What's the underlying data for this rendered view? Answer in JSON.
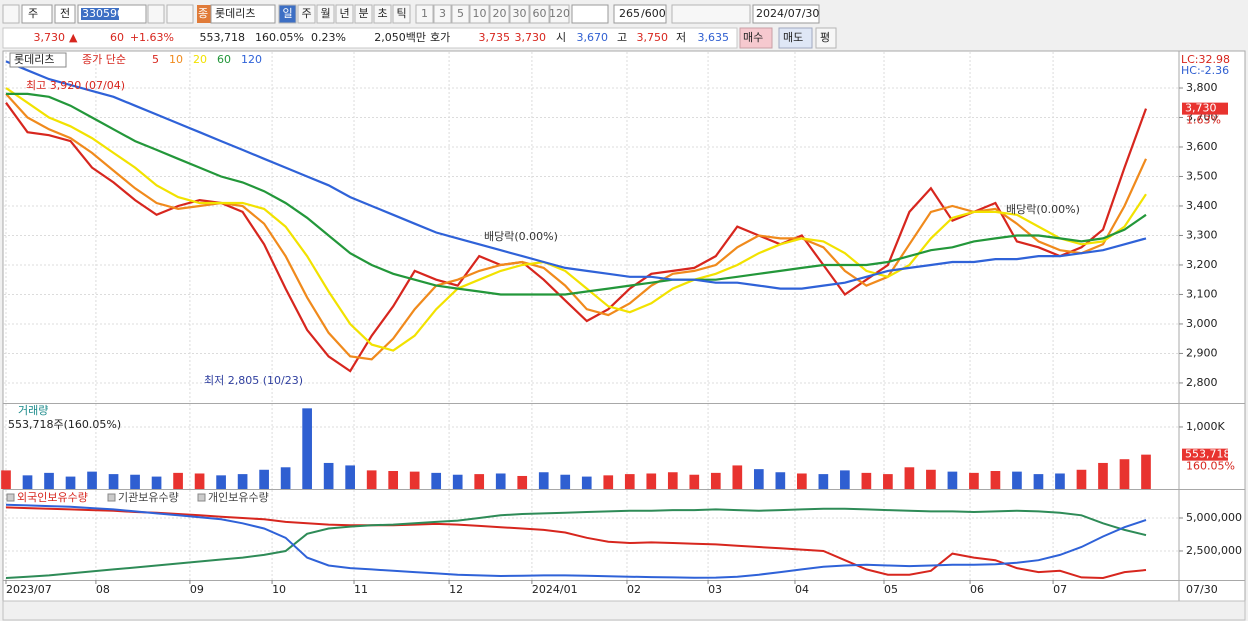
{
  "toolbar": {
    "market": "주",
    "scope": "전",
    "code": "330590",
    "badge": "종",
    "name": "롯데리츠",
    "periods": [
      "일",
      "주",
      "월",
      "년",
      "분",
      "초",
      "틱"
    ],
    "intervals": [
      "1",
      "3",
      "5",
      "10",
      "20",
      "30",
      "60",
      "120"
    ],
    "count": "265",
    "max_count": "/600",
    "date": "2024/07/30"
  },
  "info": {
    "price": "3,730",
    "direction": "▲",
    "change": "60",
    "change_rate": "+1.63%",
    "volume": "553,718",
    "volume_rate": "160.05%",
    "turnover": "0.23%",
    "amount": "2,050백만",
    "quote_label": "호가",
    "ask": "3,735",
    "bid": "3,730",
    "open_label": "시",
    "open": "3,670",
    "high_label": "고",
    "high": "3,750",
    "low_label": "저",
    "low": "3,635",
    "buy": "매수",
    "sell": "매도",
    "avg": "평"
  },
  "chart_data": [
    {
      "type": "line",
      "title": "롯데리츠",
      "subtitle": "종가 단순",
      "xlim": [
        0,
        53
      ],
      "ylim": [
        2732,
        3922
      ],
      "yticks": [
        {
          "value": 2800,
          "label": "2,800"
        },
        {
          "value": 2900,
          "label": "2,900"
        },
        {
          "value": 3000,
          "label": "3,000"
        },
        {
          "value": 3100,
          "label": "3,100"
        },
        {
          "value": 3200,
          "label": "3,200"
        },
        {
          "value": 3300,
          "label": "3,300"
        },
        {
          "value": 3400,
          "label": "3,400"
        },
        {
          "value": 3500,
          "label": "3,500"
        },
        {
          "value": 3600,
          "label": "3,600"
        },
        {
          "value": 3700,
          "label": "3,700"
        },
        {
          "value": 3800,
          "label": "3,800"
        }
      ],
      "grid": true,
      "series": [
        {
          "name": "5",
          "color": "#d7261e",
          "values": [
            3750,
            3650,
            3640,
            3620,
            3530,
            3480,
            3420,
            3370,
            3400,
            3420,
            3410,
            3380,
            3270,
            3120,
            2980,
            2890,
            2840,
            2960,
            3060,
            3180,
            3150,
            3130,
            3230,
            3200,
            3210,
            3150,
            3080,
            3010,
            3050,
            3120,
            3170,
            3180,
            3190,
            3230,
            3330,
            3300,
            3270,
            3300,
            3200,
            3100,
            3150,
            3200,
            3380,
            3460,
            3350,
            3380,
            3410,
            3280,
            3260,
            3230,
            3260,
            3320,
            3530,
            3730
          ]
        },
        {
          "name": "10",
          "color": "#f08a1c",
          "values": [
            3780,
            3700,
            3660,
            3630,
            3580,
            3520,
            3460,
            3410,
            3390,
            3400,
            3410,
            3400,
            3340,
            3230,
            3090,
            2970,
            2890,
            2880,
            2950,
            3050,
            3130,
            3150,
            3180,
            3200,
            3210,
            3190,
            3130,
            3050,
            3030,
            3070,
            3130,
            3170,
            3180,
            3200,
            3260,
            3300,
            3290,
            3290,
            3260,
            3180,
            3130,
            3160,
            3270,
            3380,
            3400,
            3380,
            3390,
            3340,
            3280,
            3250,
            3240,
            3270,
            3400,
            3560
          ]
        },
        {
          "name": "20",
          "color": "#f2e200",
          "values": [
            3800,
            3750,
            3700,
            3670,
            3630,
            3580,
            3530,
            3470,
            3430,
            3410,
            3410,
            3410,
            3390,
            3330,
            3230,
            3110,
            3000,
            2930,
            2910,
            2960,
            3050,
            3120,
            3150,
            3180,
            3200,
            3210,
            3180,
            3120,
            3060,
            3040,
            3070,
            3120,
            3150,
            3170,
            3200,
            3240,
            3270,
            3290,
            3280,
            3240,
            3180,
            3160,
            3200,
            3290,
            3360,
            3380,
            3380,
            3370,
            3330,
            3290,
            3270,
            3280,
            3330,
            3440
          ]
        },
        {
          "name": "60",
          "color": "#23973a",
          "values": [
            3780,
            3780,
            3770,
            3740,
            3700,
            3660,
            3620,
            3590,
            3560,
            3530,
            3500,
            3480,
            3450,
            3410,
            3360,
            3300,
            3240,
            3200,
            3170,
            3150,
            3130,
            3120,
            3110,
            3100,
            3100,
            3100,
            3100,
            3110,
            3120,
            3130,
            3140,
            3150,
            3150,
            3150,
            3160,
            3170,
            3180,
            3190,
            3200,
            3200,
            3200,
            3210,
            3230,
            3250,
            3260,
            3280,
            3290,
            3300,
            3300,
            3290,
            3280,
            3290,
            3320,
            3370
          ]
        },
        {
          "name": "120",
          "color": "#2f62d8",
          "values": [
            3890,
            3860,
            3830,
            3810,
            3790,
            3770,
            3740,
            3710,
            3680,
            3650,
            3620,
            3590,
            3560,
            3530,
            3500,
            3470,
            3430,
            3400,
            3370,
            3340,
            3310,
            3290,
            3270,
            3250,
            3230,
            3210,
            3190,
            3180,
            3170,
            3160,
            3160,
            3150,
            3150,
            3140,
            3140,
            3130,
            3120,
            3120,
            3130,
            3140,
            3160,
            3180,
            3190,
            3200,
            3210,
            3210,
            3220,
            3220,
            3230,
            3230,
            3240,
            3250,
            3270,
            3290
          ]
        }
      ],
      "last_label": {
        "value": 3730,
        "label": "3,730",
        "change": "1.63%"
      },
      "high_note": "최고 3,920 (07/04)",
      "low_note": "최저 2,805 (10/23)",
      "ex_dividend_notes": [
        "배당락(0.00%)",
        "배당락(0.00%)"
      ],
      "lc": "LC:32.98",
      "hc": "HC:-2.36"
    },
    {
      "type": "bar",
      "title": "거래량",
      "subtitle": "553,718주(160.05%)",
      "xlim": [
        0,
        53
      ],
      "ylim": [
        0,
        1370000
      ],
      "yticks": [
        {
          "value": 1000000,
          "label": "1,000K"
        }
      ],
      "values": [
        300000,
        220000,
        260000,
        200000,
        280000,
        240000,
        230000,
        200000,
        260000,
        250000,
        220000,
        240000,
        310000,
        350000,
        1300000,
        420000,
        380000,
        300000,
        290000,
        280000,
        260000,
        230000,
        240000,
        250000,
        210000,
        270000,
        230000,
        200000,
        220000,
        240000,
        250000,
        270000,
        230000,
        260000,
        380000,
        320000,
        270000,
        250000,
        240000,
        300000,
        260000,
        240000,
        350000,
        310000,
        280000,
        260000,
        290000,
        280000,
        240000,
        250000,
        310000,
        420000,
        480000,
        553718
      ],
      "up_color": "#e8332f",
      "down_color": "#2f5fd1",
      "last_label": {
        "value": 553718,
        "label": "553,718",
        "change": "160.05%"
      }
    },
    {
      "type": "line",
      "xlim": [
        0,
        53
      ],
      "ylim": [
        300000,
        7120000
      ],
      "yticks": [
        {
          "value": 2500000,
          "label": "2,500,000"
        },
        {
          "value": 5000000,
          "label": "5,000,000"
        }
      ],
      "xticks": [
        {
          "value": 0,
          "label": "2023/07"
        },
        {
          "value": 4.18,
          "label": "08"
        },
        {
          "value": 8.55,
          "label": "09"
        },
        {
          "value": 12.37,
          "label": "10"
        },
        {
          "value": 16.18,
          "label": "11"
        },
        {
          "value": 20.6,
          "label": "12"
        },
        {
          "value": 24.45,
          "label": "2024/01"
        },
        {
          "value": 28.87,
          "label": "02"
        },
        {
          "value": 32.64,
          "label": "03"
        },
        {
          "value": 36.68,
          "label": "04"
        },
        {
          "value": 40.82,
          "label": "05"
        },
        {
          "value": 44.82,
          "label": "06"
        },
        {
          "value": 48.68,
          "label": "07"
        }
      ],
      "x_end_label": "07/30",
      "series": [
        {
          "name": "외국인보유수량",
          "color": "#d7261e",
          "values": [
            5800000,
            5750000,
            5700000,
            5650000,
            5600000,
            5550000,
            5450000,
            5400000,
            5300000,
            5200000,
            5100000,
            5000000,
            4900000,
            4700000,
            4600000,
            4500000,
            4450000,
            4450000,
            4450000,
            4500000,
            4550000,
            4500000,
            4400000,
            4300000,
            4200000,
            4100000,
            3900000,
            3500000,
            3200000,
            3100000,
            3150000,
            3100000,
            3050000,
            3000000,
            2900000,
            2800000,
            2700000,
            2600000,
            2500000,
            1800000,
            1100000,
            700000,
            700000,
            1000000,
            2300000,
            2000000,
            1800000,
            1200000,
            900000,
            1000000,
            500000,
            450000,
            900000,
            1060000
          ]
        },
        {
          "name": "기관보유수량",
          "color": "#2e8b57",
          "values": [
            450000,
            550000,
            650000,
            800000,
            950000,
            1100000,
            1250000,
            1400000,
            1550000,
            1700000,
            1850000,
            2000000,
            2200000,
            2500000,
            3800000,
            4200000,
            4350000,
            4450000,
            4500000,
            4600000,
            4700000,
            4800000,
            5000000,
            5200000,
            5300000,
            5350000,
            5400000,
            5450000,
            5500000,
            5550000,
            5550000,
            5600000,
            5600000,
            5650000,
            5600000,
            5550000,
            5600000,
            5650000,
            5700000,
            5700000,
            5650000,
            5600000,
            5550000,
            5500000,
            5500000,
            5450000,
            5500000,
            5550000,
            5500000,
            5400000,
            5200000,
            4600000,
            4100000,
            3700000
          ]
        },
        {
          "name": "개인보유수량",
          "color": "#2f62d8",
          "values": [
            6000000,
            5950000,
            5900000,
            5850000,
            5750000,
            5650000,
            5500000,
            5350000,
            5200000,
            5050000,
            4900000,
            4600000,
            4200000,
            3500000,
            2000000,
            1400000,
            1200000,
            1100000,
            1000000,
            900000,
            800000,
            700000,
            650000,
            600000,
            620000,
            650000,
            650000,
            620000,
            580000,
            550000,
            520000,
            500000,
            470000,
            480000,
            550000,
            700000,
            900000,
            1100000,
            1300000,
            1400000,
            1450000,
            1400000,
            1350000,
            1400000,
            1450000,
            1450000,
            1500000,
            1600000,
            1800000,
            2200000,
            2800000,
            3600000,
            4300000,
            4850000
          ]
        }
      ]
    }
  ]
}
